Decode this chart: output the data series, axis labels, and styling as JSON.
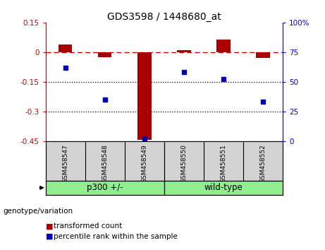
{
  "title": "GDS3598 / 1448680_at",
  "categories": [
    "GSM458547",
    "GSM458548",
    "GSM458549",
    "GSM458550",
    "GSM458551",
    "GSM458552"
  ],
  "red_values": [
    0.04,
    -0.025,
    -0.445,
    0.01,
    0.065,
    -0.03
  ],
  "blue_values_pct": [
    62,
    35,
    2,
    58,
    52,
    33
  ],
  "ylim_left": [
    -0.45,
    0.15
  ],
  "ylim_right": [
    0,
    100
  ],
  "yticks_left": [
    0.15,
    0.0,
    -0.15,
    -0.3,
    -0.45
  ],
  "ytick_labels_left": [
    "0.15",
    "0",
    "-0.15",
    "-0.3",
    "-0.45"
  ],
  "yticks_right": [
    100,
    75,
    50,
    25,
    0
  ],
  "ytick_labels_right": [
    "100%",
    "75",
    "50",
    "25",
    "0"
  ],
  "hlines": [
    -0.15,
    -0.3
  ],
  "dashed_hline": 0.0,
  "group1_label": "p300 +/-",
  "group2_label": "wild-type",
  "group1_color": "#90EE90",
  "group2_color": "#90EE90",
  "genotype_label": "genotype/variation",
  "legend_red": "transformed count",
  "legend_blue": "percentile rank within the sample",
  "bar_color": "#AA0000",
  "dot_color": "#0000BB",
  "dashed_color": "#CC0000",
  "dotted_color": "#000000",
  "background_color": "#ffffff",
  "plot_bg": "#ffffff",
  "sample_bg": "#D3D3D3"
}
